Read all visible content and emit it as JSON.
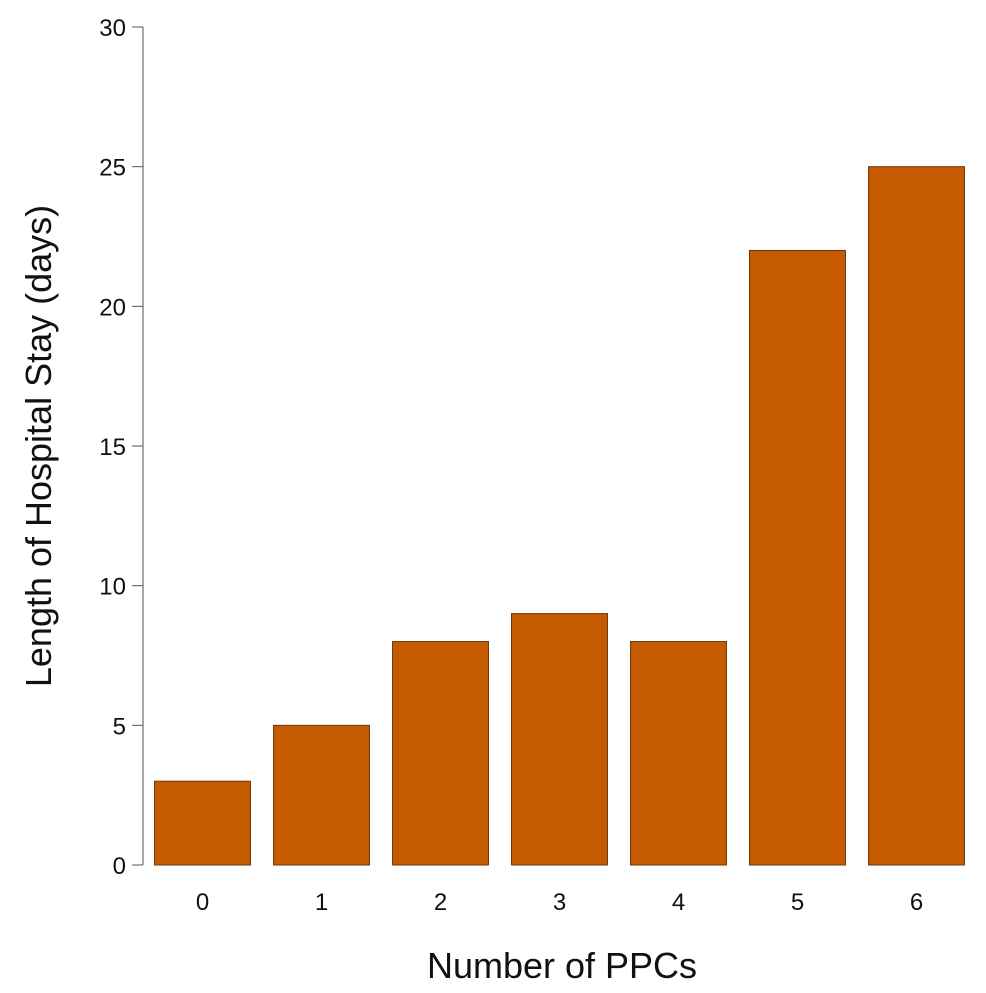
{
  "chart_data": {
    "type": "bar",
    "title": "",
    "xlabel": "Number of PPCs",
    "ylabel": "Length of Hospital Stay (days)",
    "categories": [
      "0",
      "1",
      "2",
      "3",
      "4",
      "5",
      "6"
    ],
    "values": [
      3,
      5,
      8,
      9,
      8,
      22,
      25
    ],
    "ylim": [
      0,
      30
    ],
    "yticks": [
      0,
      5,
      10,
      15,
      20,
      25,
      30
    ],
    "grid": false,
    "legend": "none",
    "bar_color": "#c55a00"
  }
}
